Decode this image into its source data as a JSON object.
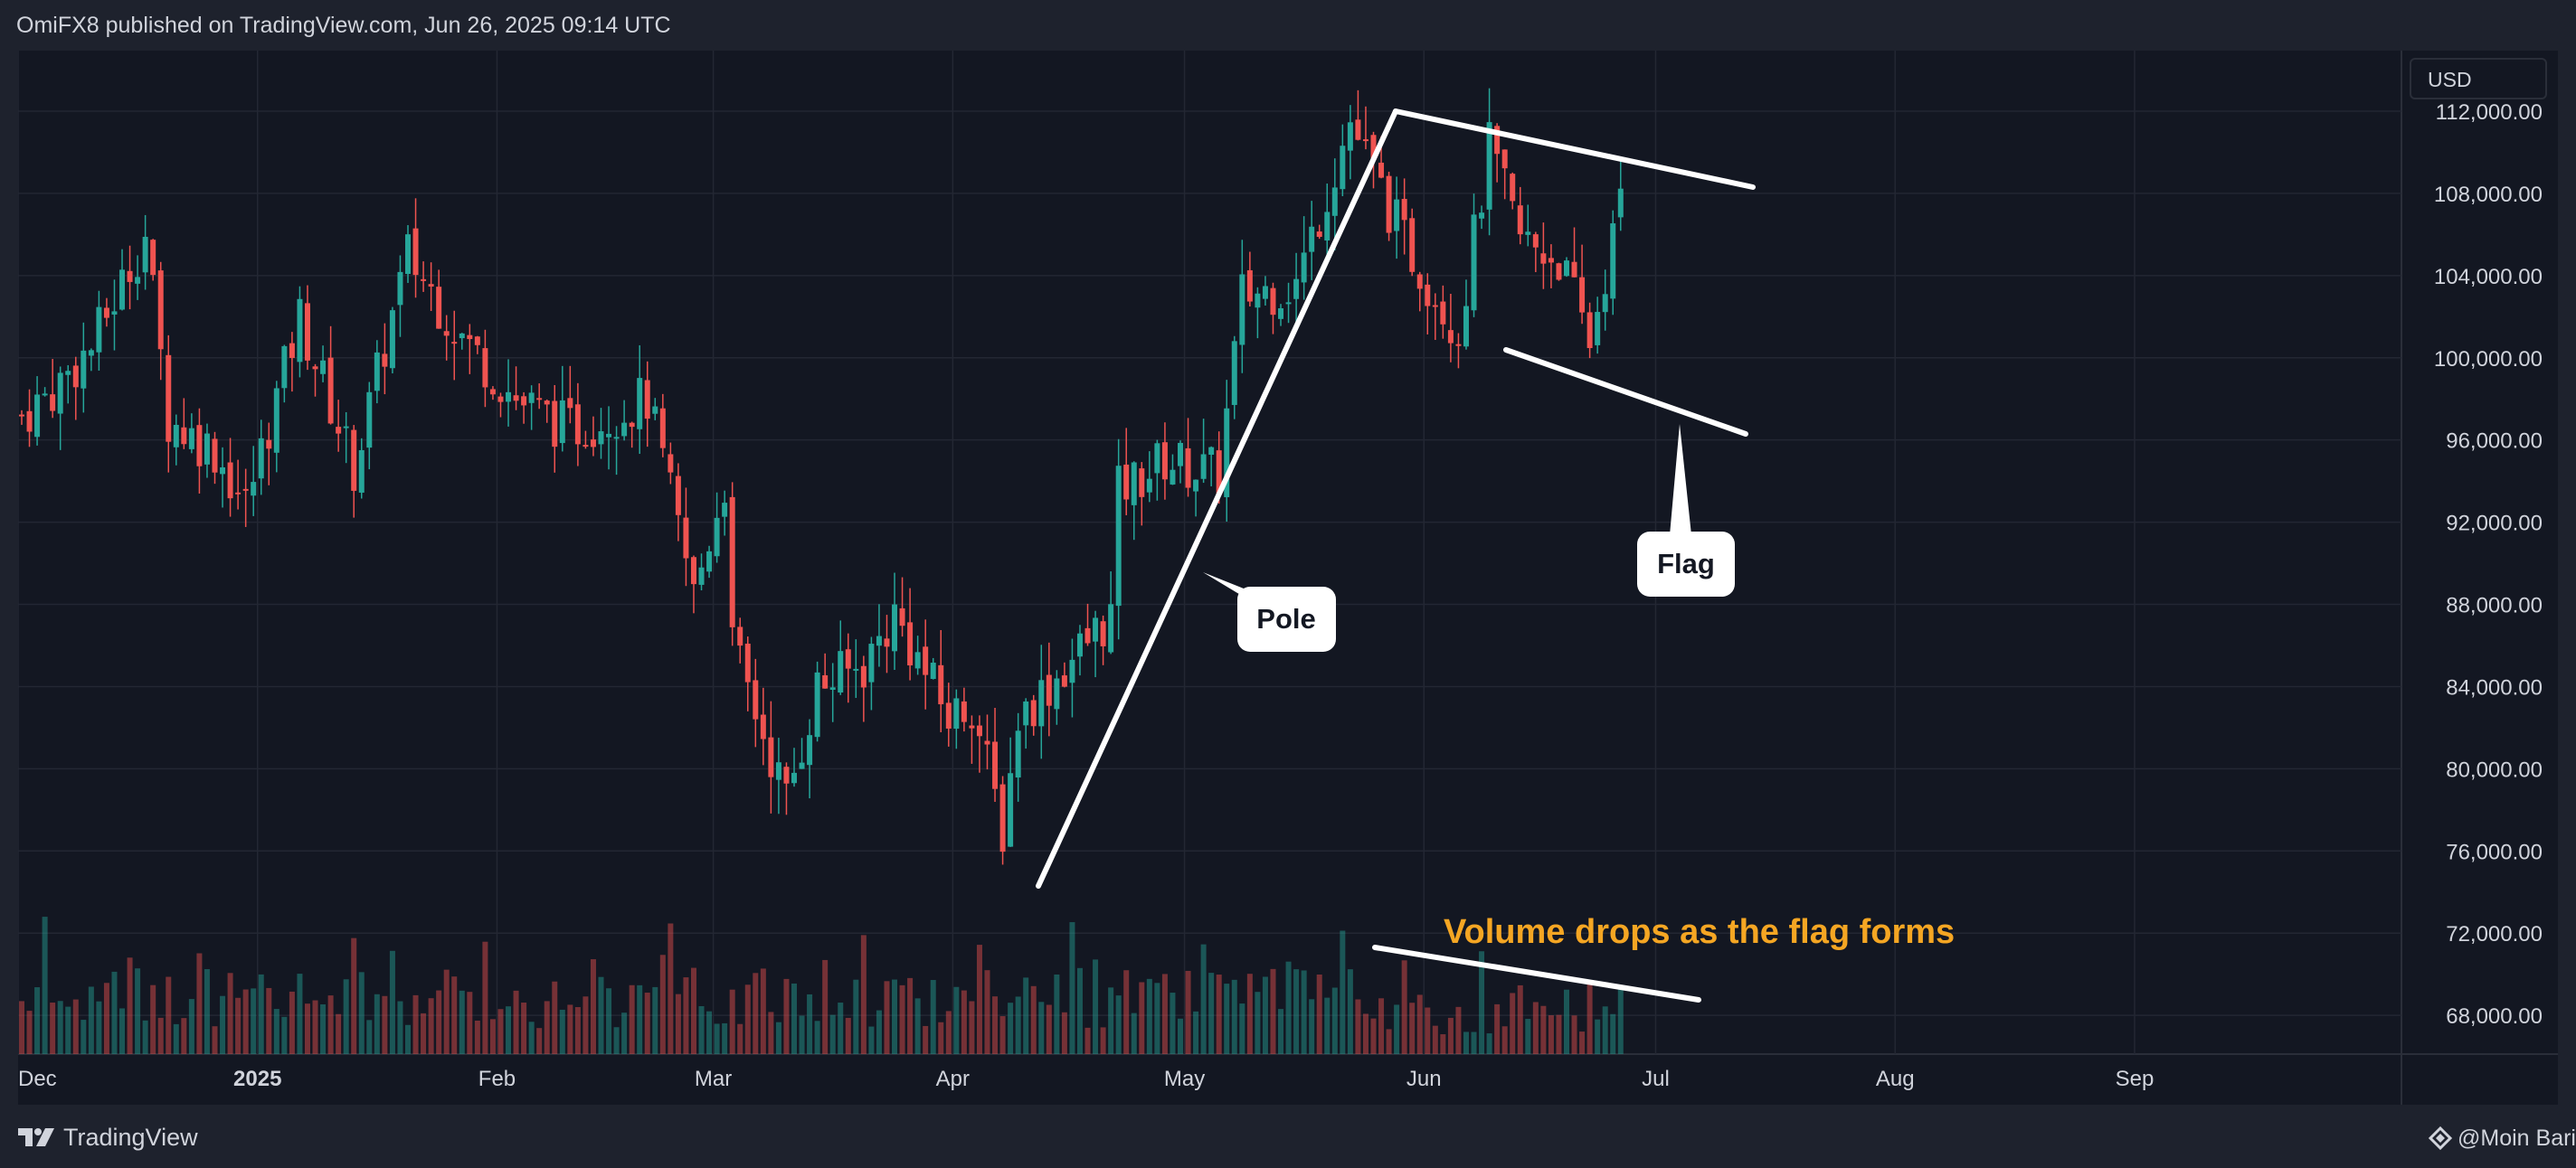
{
  "header": {
    "text": "OmiFX8 published on TradingView.com, Jun 26, 2025 09:14 UTC"
  },
  "currency": "USD",
  "footer": {
    "brand": "TradingView",
    "author": "@Moin Bari"
  },
  "colors": {
    "up": "#26a69a",
    "down": "#ef5350",
    "annotation": "#ffffff",
    "callout": "#f5a623",
    "grid": "#232733"
  },
  "annotations": {
    "pole_label": "Pole",
    "flag_label": "Flag",
    "volume_note": "Volume drops as the flag forms"
  },
  "chart_data": {
    "type": "candlestick",
    "title": "",
    "xlabel": "",
    "ylabel": "",
    "currency": "USD",
    "y_ticks": [
      68000,
      72000,
      76000,
      80000,
      84000,
      88000,
      92000,
      96000,
      100000,
      104000,
      108000,
      112000
    ],
    "y_tick_labels": [
      "68,000.00",
      "72,000.00",
      "76,000.00",
      "80,000.00",
      "84,000.00",
      "88,000.00",
      "92,000.00",
      "96,000.00",
      "100,000.00",
      "104,000.00",
      "108,000.00",
      "112,000.00"
    ],
    "x_range": [
      "2024-12-01",
      "2025-09-30"
    ],
    "x_ticks": [
      "2024-12-01",
      "2025-01-01",
      "2025-02-01",
      "2025-03-01",
      "2025-04-01",
      "2025-05-01",
      "2025-06-01",
      "2025-07-01",
      "2025-08-01",
      "2025-09-01"
    ],
    "x_tick_labels": [
      "Dec",
      "2025",
      "Feb",
      "Mar",
      "Apr",
      "May",
      "Jun",
      "Jul",
      "Aug",
      "Sep"
    ],
    "grid": true,
    "price_anchors": [
      {
        "date": "2024-12-01",
        "price": 97200
      },
      {
        "date": "2024-12-05",
        "price": 98400
      },
      {
        "date": "2024-12-10",
        "price": 100500
      },
      {
        "date": "2024-12-17",
        "price": 106000
      },
      {
        "date": "2024-12-20",
        "price": 97000
      },
      {
        "date": "2024-12-26",
        "price": 95500
      },
      {
        "date": "2024-12-30",
        "price": 92800
      },
      {
        "date": "2025-01-06",
        "price": 102000
      },
      {
        "date": "2025-01-13",
        "price": 94600
      },
      {
        "date": "2025-01-20",
        "price": 105000
      },
      {
        "date": "2025-01-27",
        "price": 101000
      },
      {
        "date": "2025-02-03",
        "price": 98000
      },
      {
        "date": "2025-02-10",
        "price": 96500
      },
      {
        "date": "2025-02-20",
        "price": 98000
      },
      {
        "date": "2025-02-26",
        "price": 88500
      },
      {
        "date": "2025-03-02",
        "price": 94000
      },
      {
        "date": "2025-03-03",
        "price": 86000
      },
      {
        "date": "2025-03-10",
        "price": 78500
      },
      {
        "date": "2025-03-14",
        "price": 84000
      },
      {
        "date": "2025-03-20",
        "price": 85000
      },
      {
        "date": "2025-03-24",
        "price": 87500
      },
      {
        "date": "2025-03-31",
        "price": 82500
      },
      {
        "date": "2025-04-03",
        "price": 83200
      },
      {
        "date": "2025-04-07",
        "price": 77000
      },
      {
        "date": "2025-04-09",
        "price": 82500
      },
      {
        "date": "2025-04-14",
        "price": 84500
      },
      {
        "date": "2025-04-21",
        "price": 87500
      },
      {
        "date": "2025-04-22",
        "price": 93500
      },
      {
        "date": "2025-04-28",
        "price": 95000
      },
      {
        "date": "2025-05-05",
        "price": 94300
      },
      {
        "date": "2025-05-08",
        "price": 103000
      },
      {
        "date": "2025-05-15",
        "price": 103600
      },
      {
        "date": "2025-05-22",
        "price": 111500
      },
      {
        "date": "2025-05-29",
        "price": 105600
      },
      {
        "date": "2025-06-05",
        "price": 101300
      },
      {
        "date": "2025-06-09",
        "price": 110200
      },
      {
        "date": "2025-06-13",
        "price": 105800
      },
      {
        "date": "2025-06-18",
        "price": 104800
      },
      {
        "date": "2025-06-22",
        "price": 100800
      },
      {
        "date": "2025-06-26",
        "price": 107400
      }
    ],
    "volume_note": "Volume drops as the flag forms"
  }
}
